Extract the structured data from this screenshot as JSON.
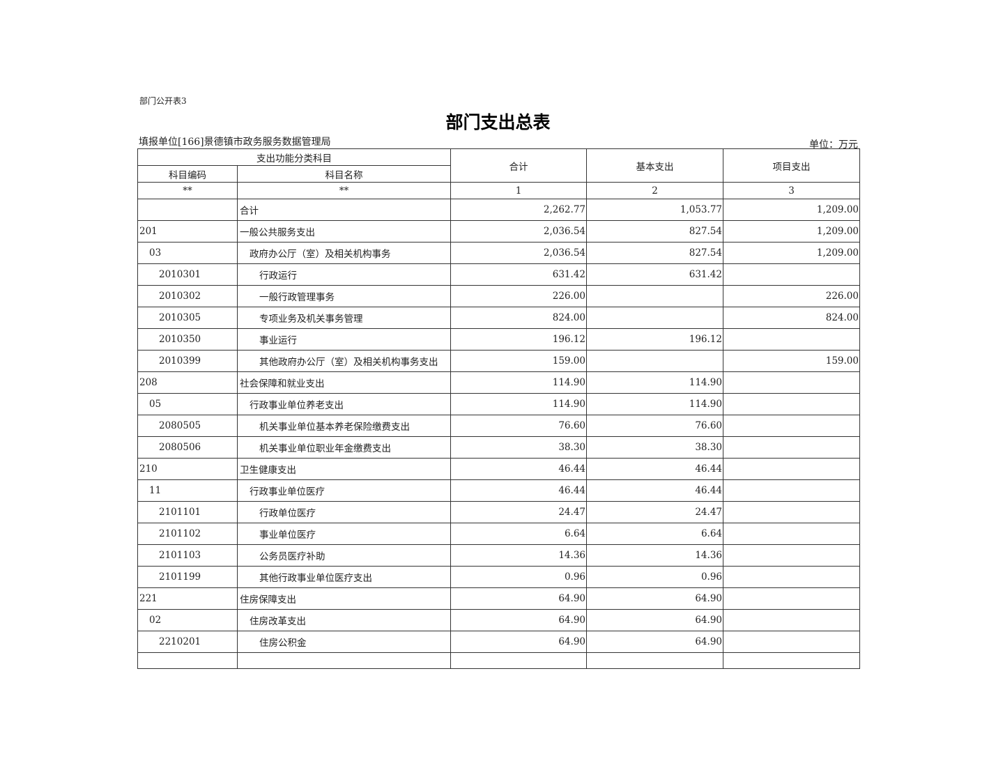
{
  "doc_tag": "部门公开表3",
  "title": "部门支出总表",
  "reporting_unit": "填报单位[166]景德镇市政务服务数据管理局",
  "unit": "单位：万元",
  "headers": {
    "group": "支出功能分类科目",
    "code": "科目编码",
    "name": "科目名称",
    "total": "合计",
    "basic": "基本支出",
    "project": "项目支出",
    "code_idx": "**",
    "name_idx": "**",
    "total_idx": "1",
    "basic_idx": "2",
    "project_idx": "3"
  },
  "rows": [
    {
      "level": 0,
      "code": "",
      "name": "合计",
      "total": "2,262.77",
      "basic": "1,053.77",
      "project": "1,209.00"
    },
    {
      "level": 0,
      "code": "201",
      "name": "一般公共服务支出",
      "total": "2,036.54",
      "basic": "827.54",
      "project": "1,209.00"
    },
    {
      "level": 1,
      "code": "03",
      "name": "政府办公厅（室）及相关机构事务",
      "total": "2,036.54",
      "basic": "827.54",
      "project": "1,209.00"
    },
    {
      "level": 2,
      "code": "2010301",
      "name": "行政运行",
      "total": "631.42",
      "basic": "631.42",
      "project": ""
    },
    {
      "level": 2,
      "code": "2010302",
      "name": "一般行政管理事务",
      "total": "226.00",
      "basic": "",
      "project": "226.00"
    },
    {
      "level": 2,
      "code": "2010305",
      "name": "专项业务及机关事务管理",
      "total": "824.00",
      "basic": "",
      "project": "824.00"
    },
    {
      "level": 2,
      "code": "2010350",
      "name": "事业运行",
      "total": "196.12",
      "basic": "196.12",
      "project": ""
    },
    {
      "level": 2,
      "code": "2010399",
      "name": "其他政府办公厅（室）及相关机构事务支出",
      "total": "159.00",
      "basic": "",
      "project": "159.00"
    },
    {
      "level": 0,
      "code": "208",
      "name": "社会保障和就业支出",
      "total": "114.90",
      "basic": "114.90",
      "project": ""
    },
    {
      "level": 1,
      "code": "05",
      "name": "行政事业单位养老支出",
      "total": "114.90",
      "basic": "114.90",
      "project": ""
    },
    {
      "level": 2,
      "code": "2080505",
      "name": "机关事业单位基本养老保险缴费支出",
      "total": "76.60",
      "basic": "76.60",
      "project": ""
    },
    {
      "level": 2,
      "code": "2080506",
      "name": "机关事业单位职业年金缴费支出",
      "total": "38.30",
      "basic": "38.30",
      "project": ""
    },
    {
      "level": 0,
      "code": "210",
      "name": "卫生健康支出",
      "total": "46.44",
      "basic": "46.44",
      "project": ""
    },
    {
      "level": 1,
      "code": "11",
      "name": "行政事业单位医疗",
      "total": "46.44",
      "basic": "46.44",
      "project": ""
    },
    {
      "level": 2,
      "code": "2101101",
      "name": "行政单位医疗",
      "total": "24.47",
      "basic": "24.47",
      "project": ""
    },
    {
      "level": 2,
      "code": "2101102",
      "name": "事业单位医疗",
      "total": "6.64",
      "basic": "6.64",
      "project": ""
    },
    {
      "level": 2,
      "code": "2101103",
      "name": "公务员医疗补助",
      "total": "14.36",
      "basic": "14.36",
      "project": ""
    },
    {
      "level": 2,
      "code": "2101199",
      "name": "其他行政事业单位医疗支出",
      "total": "0.96",
      "basic": "0.96",
      "project": ""
    },
    {
      "level": 0,
      "code": "221",
      "name": "住房保障支出",
      "total": "64.90",
      "basic": "64.90",
      "project": ""
    },
    {
      "level": 1,
      "code": "02",
      "name": "住房改革支出",
      "total": "64.90",
      "basic": "64.90",
      "project": ""
    },
    {
      "level": 2,
      "code": "2210201",
      "name": "住房公积金",
      "total": "64.90",
      "basic": "64.90",
      "project": ""
    }
  ]
}
